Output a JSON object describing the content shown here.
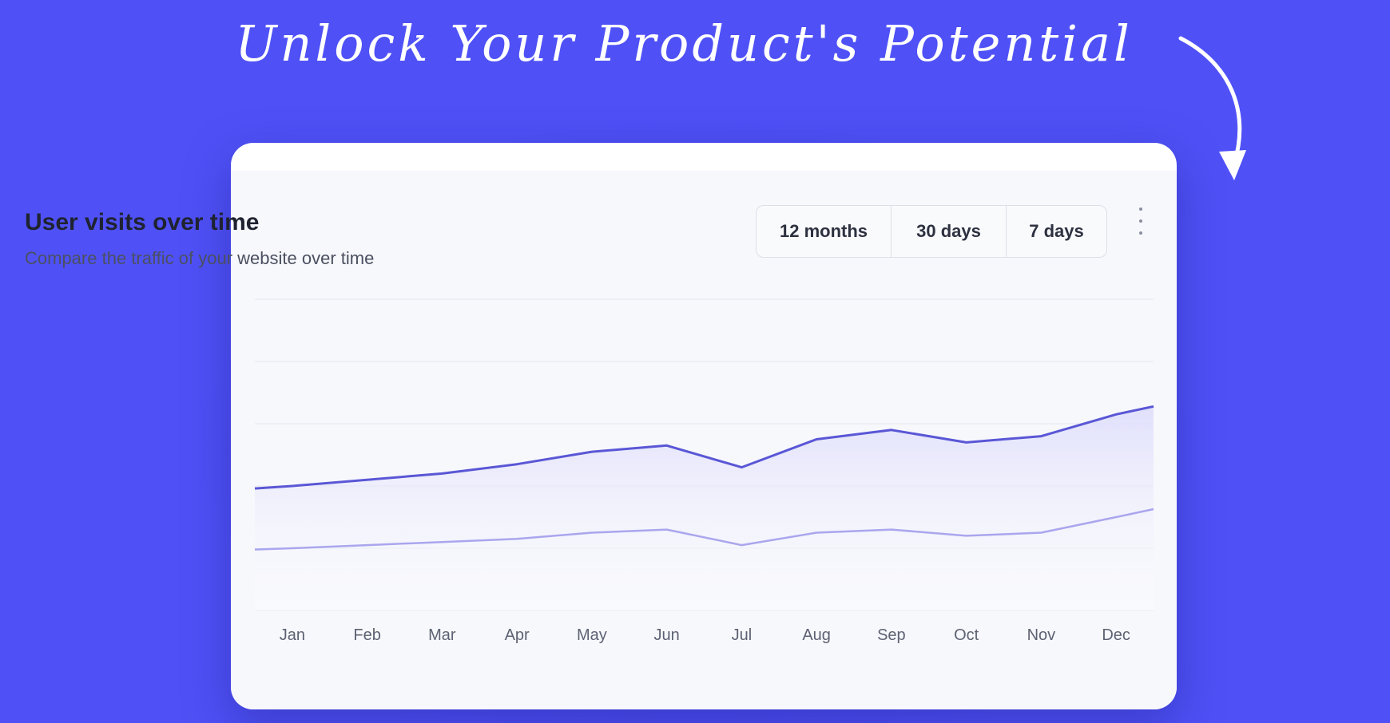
{
  "headline": "Unlock Your Product's Potential",
  "card": {
    "title": "User visits over time",
    "subtitle": "Compare the traffic of your website over time",
    "ranges": [
      "12 months",
      "30 days",
      "7 days"
    ]
  },
  "colors": {
    "background": "#4f51f6",
    "primary_line": "#5a57d6",
    "secondary_line": "#aaa6ee"
  },
  "icons": [
    "arrow-icon",
    "more-vertical-icon"
  ],
  "chart_data": {
    "type": "area",
    "title": "User visits over time",
    "categories": [
      "Jan",
      "Feb",
      "Mar",
      "Apr",
      "May",
      "Jun",
      "Jul",
      "Aug",
      "Sep",
      "Oct",
      "Nov",
      "Dec"
    ],
    "ylim": [
      0,
      100
    ],
    "grid": true,
    "series": [
      {
        "values": [
          40,
          42,
          44,
          47,
          51,
          53,
          46,
          55,
          58,
          54,
          56,
          63
        ]
      },
      {
        "values": [
          20,
          21,
          22,
          23,
          25,
          26,
          21,
          25,
          26,
          24,
          25,
          30
        ]
      }
    ]
  }
}
